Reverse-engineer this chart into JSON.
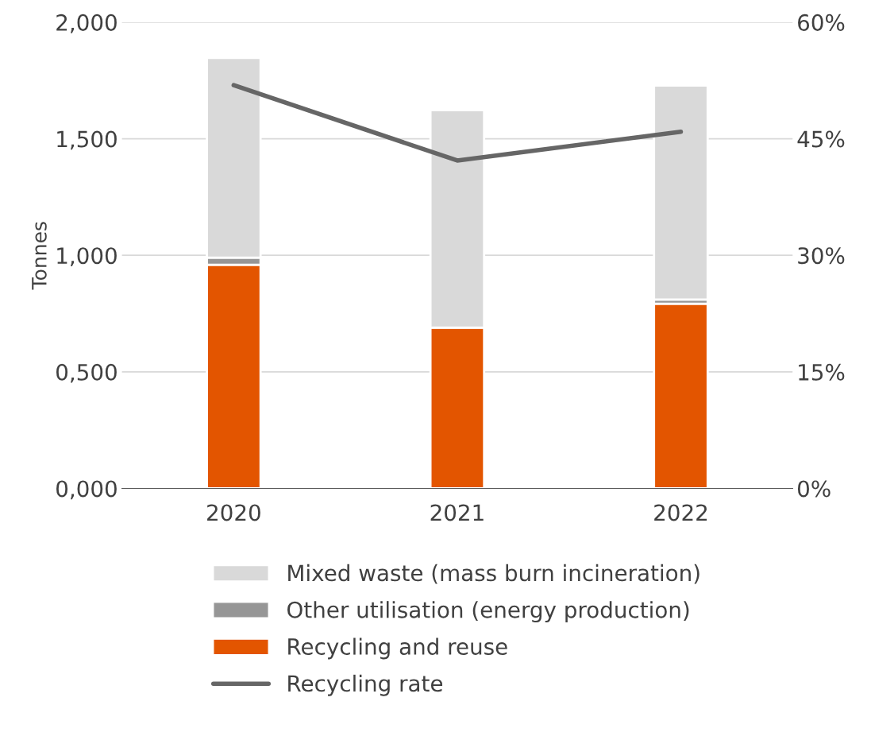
{
  "chart_data": {
    "type": "bar",
    "stacked": true,
    "ylabel": "Tonnes",
    "categories": [
      "2020",
      "2021",
      "2022"
    ],
    "series": [
      {
        "name": "Recycling and reuse",
        "color": "#e35500",
        "values": [
          0.959,
          0.69,
          0.792
        ]
      },
      {
        "name": "Other utilisation (energy production)",
        "color": "#969696",
        "values": [
          0.031,
          null,
          0.018
        ]
      },
      {
        "name": "Mixed waste (mass burn incineration)",
        "color": "#d9d9d9",
        "values": [
          0.857,
          0.933,
          0.918
        ]
      },
      {
        "name": "Recycling rate",
        "type": "line",
        "axis": "y2",
        "color": "#666666",
        "values": [
          51.9,
          42.2,
          45.9
        ]
      }
    ],
    "ylim": [
      0,
      2
    ],
    "yticks": [
      {
        "value": 0,
        "label": "0,000"
      },
      {
        "value": 0.5,
        "label": "0,500"
      },
      {
        "value": 1,
        "label": "1,000"
      },
      {
        "value": 1.5,
        "label": "1,500"
      },
      {
        "value": 2,
        "label": "2,000"
      }
    ],
    "y2lim": [
      0,
      60
    ],
    "y2ticks": [
      {
        "value": 0,
        "label": "0%"
      },
      {
        "value": 15,
        "label": "15%"
      },
      {
        "value": 30,
        "label": "30%"
      },
      {
        "value": 45,
        "label": "45%"
      },
      {
        "value": 60,
        "label": "60%"
      }
    ],
    "grid": "y",
    "legend": "bottom"
  }
}
